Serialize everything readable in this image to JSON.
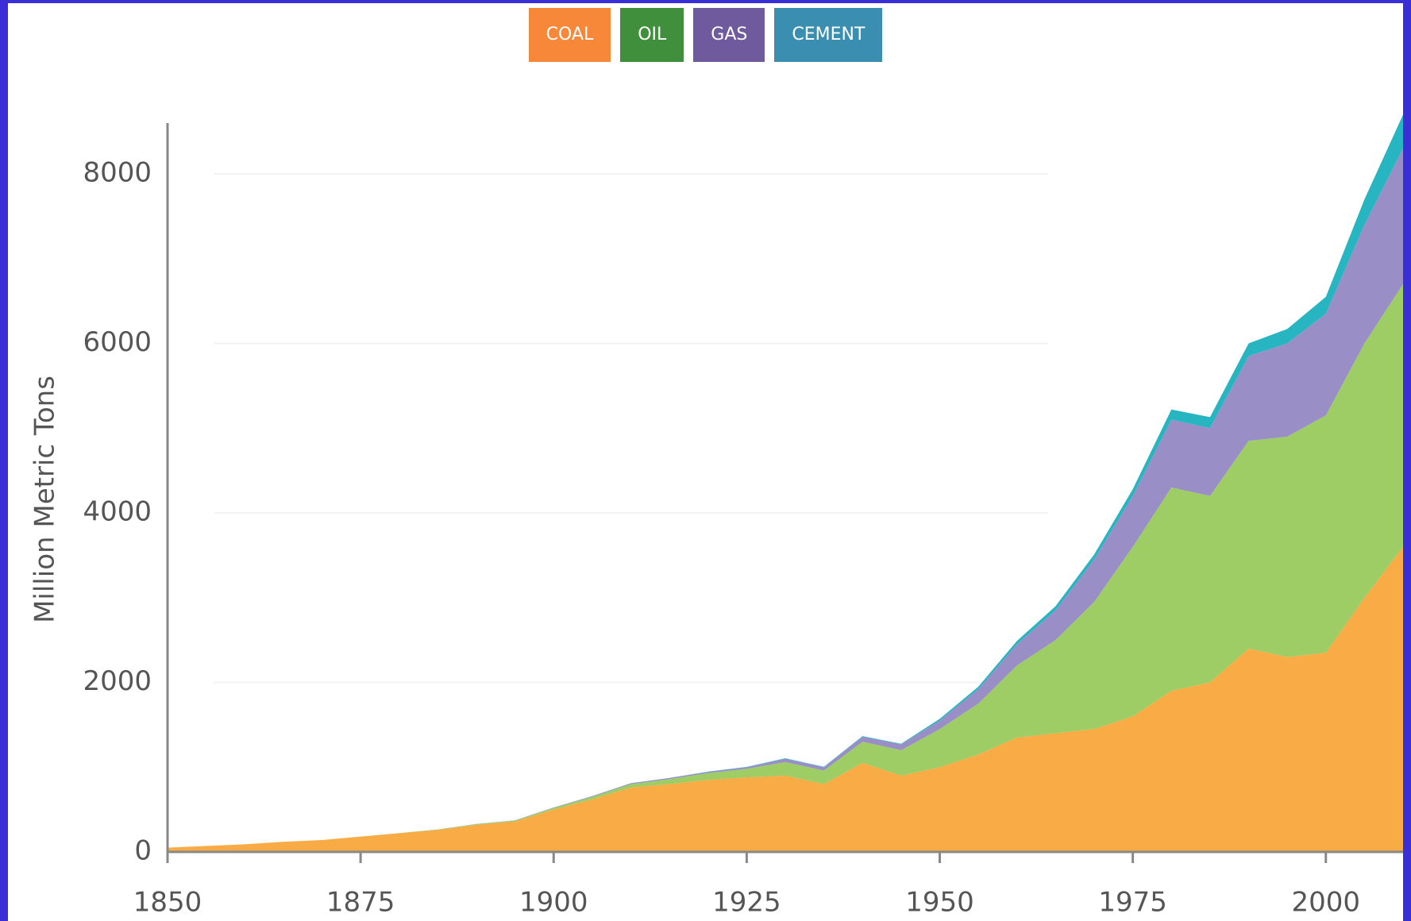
{
  "chart_data": {
    "type": "stacked_area",
    "y_label": "Million Metric Tons",
    "x": [
      1850,
      1855,
      1860,
      1865,
      1870,
      1875,
      1880,
      1885,
      1890,
      1895,
      1900,
      1905,
      1910,
      1915,
      1920,
      1925,
      1930,
      1935,
      1940,
      1945,
      1950,
      1955,
      1960,
      1965,
      1970,
      1975,
      1980,
      1985,
      1990,
      1995,
      2000,
      2005,
      2010
    ],
    "series": [
      {
        "name": "COAL",
        "color": "#f9ab45",
        "button_color": "#f7883a",
        "values": [
          50,
          70,
          90,
          120,
          140,
          180,
          220,
          260,
          320,
          360,
          500,
          620,
          760,
          800,
          850,
          880,
          900,
          800,
          1050,
          900,
          1000,
          1150,
          1350,
          1400,
          1450,
          1600,
          1900,
          2000,
          2400,
          2300,
          2350,
          3000,
          3600
        ]
      },
      {
        "name": "OIL",
        "color": "#9dcd64",
        "button_color": "#3f8f3d",
        "values": [
          0,
          0,
          0,
          0,
          0,
          2,
          3,
          5,
          8,
          10,
          20,
          30,
          40,
          60,
          80,
          100,
          160,
          160,
          250,
          300,
          450,
          600,
          850,
          1100,
          1500,
          2000,
          2400,
          2200,
          2450,
          2600,
          2800,
          3000,
          3100
        ]
      },
      {
        "name": "GAS",
        "color": "#9a8ec6",
        "button_color": "#6f5a9e",
        "values": [
          0,
          0,
          0,
          0,
          0,
          0,
          0,
          1,
          2,
          3,
          5,
          8,
          10,
          12,
          15,
          20,
          40,
          40,
          60,
          70,
          100,
          170,
          250,
          350,
          500,
          600,
          800,
          800,
          1000,
          1100,
          1200,
          1400,
          1600
        ]
      },
      {
        "name": "CEMENT",
        "color": "#27b5c1",
        "button_color": "#3a8fb0",
        "values": [
          0,
          0,
          0,
          0,
          0,
          0,
          0,
          0,
          0,
          0,
          0,
          1,
          2,
          2,
          3,
          4,
          5,
          5,
          7,
          6,
          20,
          30,
          40,
          50,
          60,
          80,
          120,
          130,
          150,
          170,
          200,
          300,
          400
        ]
      }
    ],
    "xlim": [
      1850,
      2010
    ],
    "xticks": [
      1850,
      1875,
      1900,
      1925,
      1950,
      1975,
      2000
    ],
    "ylim": [
      0,
      8600
    ],
    "yticks": [
      0,
      2000,
      4000,
      6000,
      8000
    ],
    "grid": true
  }
}
